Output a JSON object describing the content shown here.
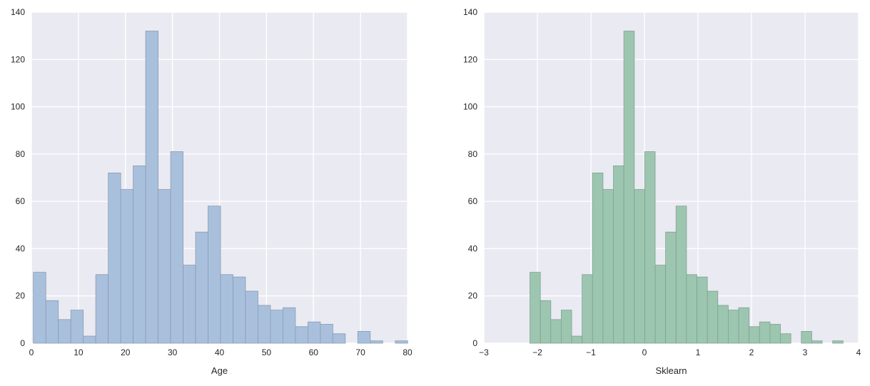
{
  "chart_data": [
    {
      "type": "bar",
      "title": "",
      "xlabel": "Age",
      "ylabel": "",
      "xlim": [
        0,
        80
      ],
      "ylim": [
        0,
        140
      ],
      "xticks": [
        0,
        10,
        20,
        30,
        40,
        50,
        60,
        70,
        80
      ],
      "xtick_labels": [
        "0",
        "10",
        "20",
        "30",
        "40",
        "50",
        "60",
        "70",
        "80"
      ],
      "yticks": [
        0,
        20,
        40,
        60,
        80,
        100,
        120,
        140
      ],
      "ytick_labels": [
        "0",
        "20",
        "40",
        "60",
        "80",
        "100",
        "120",
        "140"
      ],
      "grid": true,
      "bar_color": "#a9c0dd",
      "edge_color": "#8a9bb1",
      "bin_start": 0.42,
      "bin_width": 2.654,
      "values": [
        30,
        18,
        10,
        14,
        3,
        29,
        72,
        65,
        75,
        132,
        65,
        81,
        33,
        47,
        58,
        29,
        28,
        22,
        16,
        14,
        15,
        7,
        9,
        8,
        4,
        0,
        5,
        1,
        0,
        1
      ]
    },
    {
      "type": "bar",
      "title": "",
      "xlabel": "Sklearn",
      "ylabel": "",
      "xlim": [
        -3,
        4
      ],
      "ylim": [
        0,
        140
      ],
      "xticks": [
        -3,
        -2,
        -1,
        0,
        1,
        2,
        3,
        4
      ],
      "xtick_labels": [
        "−3",
        "−2",
        "−1",
        "0",
        "1",
        "2",
        "3",
        "4"
      ],
      "yticks": [
        0,
        20,
        40,
        60,
        80,
        100,
        120,
        140
      ],
      "ytick_labels": [
        "0",
        "20",
        "40",
        "60",
        "80",
        "100",
        "120",
        "140"
      ],
      "grid": true,
      "bar_color": "#9dc6b0",
      "edge_color": "#7fa191",
      "bin_start": -2.14,
      "bin_width": 0.195,
      "values": [
        30,
        18,
        10,
        14,
        3,
        29,
        72,
        65,
        75,
        132,
        65,
        81,
        33,
        47,
        58,
        29,
        28,
        22,
        16,
        14,
        15,
        7,
        9,
        8,
        4,
        0,
        5,
        1,
        0,
        1
      ]
    }
  ]
}
